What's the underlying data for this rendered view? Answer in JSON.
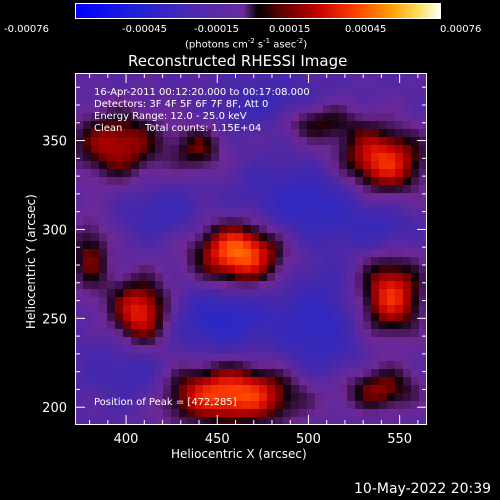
{
  "colorbar": {
    "ticks": [
      "-0.00076",
      "-0.00045",
      "-0.00015",
      "0.00015",
      "0.00045",
      "0.00076"
    ],
    "units_text": "(photons cm",
    "units_sup1": "-2",
    "units_mid": " s",
    "units_sup2": "-1",
    "units_end": " asec",
    "units_sup3": "-2",
    "units_close": ")"
  },
  "chart_data": {
    "type": "heatmap",
    "title": "Reconstructed RHESSI Image",
    "xlabel": "Heliocentric X (arcsec)",
    "ylabel": "Heliocentric Y (arcsec)",
    "xlim": [
      372,
      565
    ],
    "ylim": [
      190,
      388
    ],
    "x_ticks": [
      400,
      450,
      500,
      550
    ],
    "y_ticks": [
      200,
      250,
      300,
      350
    ],
    "colorbar_range": [
      -0.00076,
      0.00076
    ],
    "peak": {
      "x": 472,
      "y": 285
    },
    "sources": [
      {
        "x": 462,
        "y": 287,
        "sx": 17,
        "sy": 13,
        "amp": 1.0
      },
      {
        "x": 408,
        "y": 253,
        "sx": 12,
        "sy": 14,
        "amp": 0.85
      },
      {
        "x": 458,
        "y": 207,
        "sx": 28,
        "sy": 12,
        "amp": 0.92
      },
      {
        "x": 540,
        "y": 338,
        "sx": 17,
        "sy": 14,
        "amp": 0.85
      },
      {
        "x": 545,
        "y": 263,
        "sx": 13,
        "sy": 16,
        "amp": 0.8
      },
      {
        "x": 395,
        "y": 348,
        "sx": 18,
        "sy": 14,
        "amp": 0.65
      },
      {
        "x": 540,
        "y": 210,
        "sx": 15,
        "sy": 9,
        "amp": 0.55
      },
      {
        "x": 503,
        "y": 361,
        "sx": 16,
        "sy": 8,
        "amp": 0.5
      },
      {
        "x": 440,
        "y": 345,
        "sx": 10,
        "sy": 10,
        "amp": 0.45
      },
      {
        "x": 380,
        "y": 285,
        "sx": 8,
        "sy": 15,
        "amp": 0.5
      },
      {
        "x": 452,
        "y": 250,
        "sx": 20,
        "sy": 12,
        "amp": -0.55
      },
      {
        "x": 500,
        "y": 315,
        "sx": 25,
        "sy": 14,
        "amp": -0.5
      },
      {
        "x": 505,
        "y": 245,
        "sx": 15,
        "sy": 22,
        "amp": -0.45
      },
      {
        "x": 480,
        "y": 370,
        "sx": 20,
        "sy": 10,
        "amp": -0.35
      },
      {
        "x": 420,
        "y": 310,
        "sx": 15,
        "sy": 10,
        "amp": -0.3
      },
      {
        "x": 410,
        "y": 215,
        "sx": 10,
        "sy": 12,
        "amp": -0.25
      },
      {
        "x": 540,
        "y": 300,
        "sx": 12,
        "sy": 8,
        "amp": -0.3
      },
      {
        "x": 395,
        "y": 225,
        "sx": 15,
        "sy": 15,
        "amp": -0.2
      }
    ]
  },
  "annotations": {
    "time_range": "16-Apr-2011 00:12:20.000 to 00:17:08.000",
    "detectors": "Detectors: 3F 4F 5F 6F 7F 8F, Att 0",
    "energy": "Energy Range: 12.0 - 25.0 keV",
    "clean_label": "Clean",
    "total_counts": "Total counts: 1.15E+04",
    "peak_label": "Position of Peak = [472,285]"
  },
  "timestamp": "10-May-2022 20:39"
}
